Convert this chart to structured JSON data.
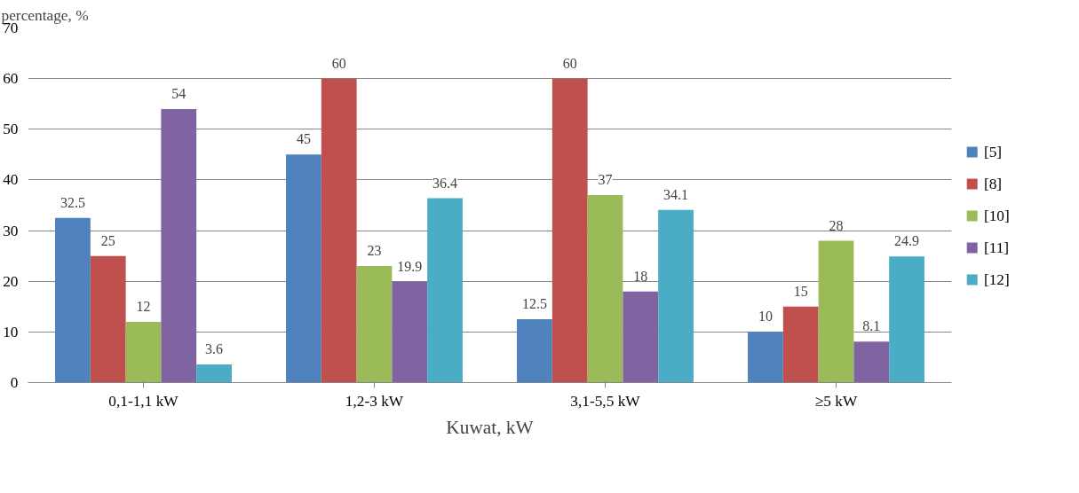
{
  "chart_data": {
    "type": "bar",
    "ylabel": "percentage, %",
    "xlabel": "Kuwat, kW",
    "categories": [
      "0,1-1,1 kW",
      "1,2-3 kW",
      "3,1-5,5 kW",
      "≥5 kW"
    ],
    "series": [
      {
        "name": "[5]",
        "color": "#4f81bd",
        "values": [
          32.5,
          45,
          12.5,
          10
        ]
      },
      {
        "name": "[8]",
        "color": "#c0504d",
        "values": [
          25,
          60,
          60,
          15
        ]
      },
      {
        "name": "[10]",
        "color": "#9bbb59",
        "values": [
          12,
          23,
          37,
          28
        ]
      },
      {
        "name": "[11]",
        "color": "#8064a2",
        "values": [
          54,
          19.9,
          18,
          8.1
        ]
      },
      {
        "name": "[12]",
        "color": "#4bacc6",
        "values": [
          3.6,
          36.4,
          34.1,
          24.9
        ]
      }
    ],
    "ylim": [
      0,
      70
    ],
    "yticks": [
      0,
      10,
      20,
      30,
      40,
      50,
      60,
      70
    ],
    "grid": "y",
    "legend": "right",
    "data_labels": true
  }
}
